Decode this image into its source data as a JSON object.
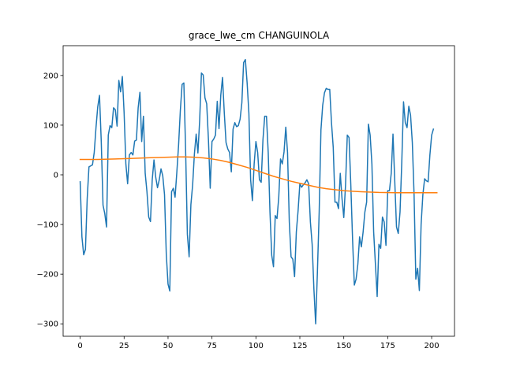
{
  "chart_data": {
    "type": "line",
    "title": "grace_lwe_cm CHANGUINOLA",
    "xlabel": "",
    "ylabel": "",
    "xlim": [
      -9.7,
      213
    ],
    "ylim": [
      -325,
      260
    ],
    "xticks": [
      0,
      25,
      50,
      75,
      100,
      125,
      150,
      175,
      200
    ],
    "yticks": [
      -300,
      -200,
      -100,
      0,
      100,
      200
    ],
    "grid": false,
    "legend": "none",
    "series": [
      {
        "color": "#1f77b4",
        "points": [
          [
            0,
            -14
          ],
          [
            1,
            -125
          ],
          [
            2,
            -161
          ],
          [
            3,
            -150
          ],
          [
            4,
            -48
          ],
          [
            5,
            16
          ],
          [
            6,
            18
          ],
          [
            7,
            20
          ],
          [
            8,
            45
          ],
          [
            9,
            95
          ],
          [
            10,
            137
          ],
          [
            11,
            160
          ],
          [
            12,
            67
          ],
          [
            13,
            -61
          ],
          [
            14,
            -78
          ],
          [
            15,
            -105
          ],
          [
            16,
            80
          ],
          [
            17,
            99
          ],
          [
            18,
            95
          ],
          [
            19,
            135
          ],
          [
            20,
            131
          ],
          [
            21,
            98
          ],
          [
            22,
            190
          ],
          [
            23,
            167
          ],
          [
            24,
            198
          ],
          [
            25,
            125
          ],
          [
            26,
            22
          ],
          [
            27,
            -18
          ],
          [
            28,
            40
          ],
          [
            29,
            45
          ],
          [
            30,
            40
          ],
          [
            31,
            68
          ],
          [
            32,
            70
          ],
          [
            33,
            135
          ],
          [
            34,
            166
          ],
          [
            35,
            67
          ],
          [
            36,
            118
          ],
          [
            37,
            3
          ],
          [
            38,
            -34
          ],
          [
            39,
            -85
          ],
          [
            40,
            -94
          ],
          [
            41,
            -10
          ],
          [
            42,
            30
          ],
          [
            43,
            -5
          ],
          [
            44,
            -26
          ],
          [
            45,
            -10
          ],
          [
            46,
            12
          ],
          [
            47,
            -2
          ],
          [
            48,
            -40
          ],
          [
            49,
            -160
          ],
          [
            50,
            -220
          ],
          [
            51,
            -234
          ],
          [
            52,
            -34
          ],
          [
            53,
            -27
          ],
          [
            54,
            -45
          ],
          [
            55,
            5
          ],
          [
            56,
            60
          ],
          [
            57,
            130
          ],
          [
            58,
            182
          ],
          [
            59,
            185
          ],
          [
            60,
            50
          ],
          [
            61,
            -120
          ],
          [
            62,
            -165
          ],
          [
            63,
            -60
          ],
          [
            64,
            -20
          ],
          [
            65,
            42
          ],
          [
            66,
            82
          ],
          [
            67,
            44
          ],
          [
            68,
            110
          ],
          [
            69,
            205
          ],
          [
            70,
            201
          ],
          [
            71,
            155
          ],
          [
            72,
            143
          ],
          [
            73,
            70
          ],
          [
            74,
            -27
          ],
          [
            75,
            67
          ],
          [
            76,
            72
          ],
          [
            77,
            80
          ],
          [
            78,
            148
          ],
          [
            79,
            93
          ],
          [
            80,
            160
          ],
          [
            81,
            196
          ],
          [
            82,
            125
          ],
          [
            83,
            65
          ],
          [
            84,
            52
          ],
          [
            85,
            45
          ],
          [
            86,
            6
          ],
          [
            87,
            92
          ],
          [
            88,
            105
          ],
          [
            89,
            97
          ],
          [
            90,
            99
          ],
          [
            91,
            112
          ],
          [
            92,
            145
          ],
          [
            93,
            226
          ],
          [
            94,
            232
          ],
          [
            95,
            185
          ],
          [
            96,
            124
          ],
          [
            97,
            -10
          ],
          [
            98,
            -52
          ],
          [
            99,
            22
          ],
          [
            100,
            67
          ],
          [
            101,
            45
          ],
          [
            102,
            -10
          ],
          [
            103,
            -15
          ],
          [
            104,
            70
          ],
          [
            105,
            118
          ],
          [
            106,
            118
          ],
          [
            107,
            45
          ],
          [
            108,
            -75
          ],
          [
            109,
            -162
          ],
          [
            110,
            -185
          ],
          [
            111,
            -82
          ],
          [
            112,
            -88
          ],
          [
            113,
            -45
          ],
          [
            114,
            32
          ],
          [
            115,
            22
          ],
          [
            116,
            46
          ],
          [
            117,
            96
          ],
          [
            118,
            45
          ],
          [
            119,
            -95
          ],
          [
            120,
            -165
          ],
          [
            121,
            -170
          ],
          [
            122,
            -205
          ],
          [
            123,
            -115
          ],
          [
            124,
            -72
          ],
          [
            125,
            -18
          ],
          [
            126,
            -25
          ],
          [
            127,
            -20
          ],
          [
            128,
            -16
          ],
          [
            129,
            -10
          ],
          [
            130,
            -18
          ],
          [
            131,
            -95
          ],
          [
            132,
            -140
          ],
          [
            133,
            -230
          ],
          [
            134,
            -300
          ],
          [
            135,
            -195
          ],
          [
            136,
            -75
          ],
          [
            137,
            90
          ],
          [
            138,
            140
          ],
          [
            139,
            165
          ],
          [
            140,
            174
          ],
          [
            141,
            172
          ],
          [
            142,
            172
          ],
          [
            143,
            105
          ],
          [
            144,
            55
          ],
          [
            145,
            -55
          ],
          [
            146,
            -55
          ],
          [
            147,
            -68
          ],
          [
            148,
            3
          ],
          [
            149,
            -48
          ],
          [
            150,
            -86
          ],
          [
            151,
            -20
          ],
          [
            152,
            80
          ],
          [
            153,
            75
          ],
          [
            154,
            -20
          ],
          [
            155,
            -130
          ],
          [
            156,
            -222
          ],
          [
            157,
            -210
          ],
          [
            158,
            -180
          ],
          [
            159,
            -125
          ],
          [
            160,
            -145
          ],
          [
            161,
            -115
          ],
          [
            162,
            -75
          ],
          [
            163,
            -55
          ],
          [
            164,
            102
          ],
          [
            165,
            80
          ],
          [
            166,
            22
          ],
          [
            167,
            -115
          ],
          [
            168,
            -180
          ],
          [
            169,
            -245
          ],
          [
            170,
            -140
          ],
          [
            171,
            -148
          ],
          [
            172,
            -85
          ],
          [
            173,
            -95
          ],
          [
            174,
            -142
          ],
          [
            175,
            -32
          ],
          [
            176,
            -32
          ],
          [
            177,
            3
          ],
          [
            178,
            82
          ],
          [
            179,
            -12
          ],
          [
            180,
            -105
          ],
          [
            181,
            -118
          ],
          [
            182,
            -75
          ],
          [
            183,
            25
          ],
          [
            184,
            147
          ],
          [
            185,
            105
          ],
          [
            186,
            95
          ],
          [
            187,
            138
          ],
          [
            188,
            120
          ],
          [
            189,
            65
          ],
          [
            190,
            -40
          ],
          [
            191,
            -210
          ],
          [
            192,
            -188
          ],
          [
            193,
            -233
          ],
          [
            194,
            -100
          ],
          [
            195,
            -40
          ],
          [
            196,
            -8
          ],
          [
            197,
            -12
          ],
          [
            198,
            -14
          ],
          [
            199,
            40
          ],
          [
            200,
            80
          ],
          [
            201,
            92
          ]
        ]
      },
      {
        "color": "#ff7f0e",
        "points": [
          [
            0,
            31
          ],
          [
            10,
            31
          ],
          [
            20,
            32
          ],
          [
            30,
            33
          ],
          [
            40,
            34.5
          ],
          [
            50,
            35.5
          ],
          [
            55,
            36
          ],
          [
            60,
            36
          ],
          [
            65,
            35.5
          ],
          [
            70,
            34
          ],
          [
            75,
            32
          ],
          [
            80,
            29
          ],
          [
            85,
            25
          ],
          [
            90,
            20
          ],
          [
            95,
            15
          ],
          [
            100,
            9
          ],
          [
            105,
            3
          ],
          [
            110,
            -3
          ],
          [
            115,
            -8
          ],
          [
            120,
            -13
          ],
          [
            125,
            -17
          ],
          [
            130,
            -21
          ],
          [
            135,
            -25
          ],
          [
            140,
            -28
          ],
          [
            145,
            -30
          ],
          [
            150,
            -32
          ],
          [
            155,
            -33
          ],
          [
            160,
            -34
          ],
          [
            170,
            -35.5
          ],
          [
            180,
            -36
          ],
          [
            190,
            -36
          ],
          [
            203,
            -36
          ]
        ]
      }
    ]
  }
}
